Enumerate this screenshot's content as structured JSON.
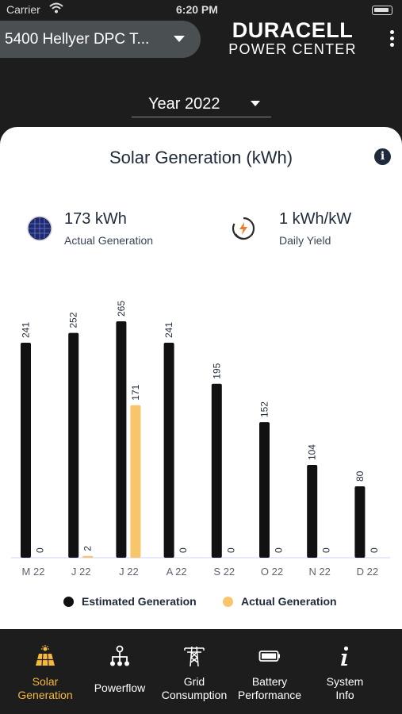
{
  "status_bar": {
    "carrier": "Carrier",
    "time": "6:20 PM"
  },
  "header": {
    "site_name": "5400 Hellyer DPC T...",
    "brand_line1": "DURACELL",
    "brand_line2": "POWER CENTER"
  },
  "year_select": {
    "label": "Year 2022"
  },
  "card": {
    "title": "Solar Generation (kWh)",
    "stats": [
      {
        "value": "173 kWh",
        "label": "Actual Generation",
        "icon": "solar-panel-icon"
      },
      {
        "value": "1 kWh/kW",
        "label": "Daily Yield",
        "icon": "yield-icon"
      }
    ]
  },
  "colors": {
    "estimated": "#111111",
    "actual": "#f9c56a",
    "accent": "#f5b93d",
    "navy": "#1f2a3a"
  },
  "chart_data": {
    "type": "bar",
    "categories": [
      "M 22",
      "J 22",
      "J 22",
      "A 22",
      "S 22",
      "O 22",
      "N 22",
      "D 22"
    ],
    "series": [
      {
        "name": "Estimated Generation",
        "values": [
          241,
          252,
          265,
          241,
          195,
          152,
          104,
          80
        ]
      },
      {
        "name": "Actual Generation",
        "values": [
          0,
          2,
          171,
          0,
          0,
          0,
          0,
          0
        ]
      }
    ],
    "ylim": [
      0,
      265
    ],
    "grid": false,
    "legend_position": "bottom"
  },
  "legend": {
    "estimated": "Estimated Generation",
    "actual": "Actual Generation"
  },
  "tabs": [
    {
      "label1": "Solar",
      "label2": "Generation",
      "icon": "solar-panel-icon",
      "active": true
    },
    {
      "label1": "Powerflow",
      "label2": "",
      "icon": "powerflow-icon",
      "active": false
    },
    {
      "label1": "Grid",
      "label2": "Consumption",
      "icon": "power-tower-icon",
      "active": false
    },
    {
      "label1": "Battery",
      "label2": "Performance",
      "icon": "battery-icon",
      "active": false
    },
    {
      "label1": "System",
      "label2": "Info",
      "icon": "info-icon",
      "active": false
    }
  ]
}
